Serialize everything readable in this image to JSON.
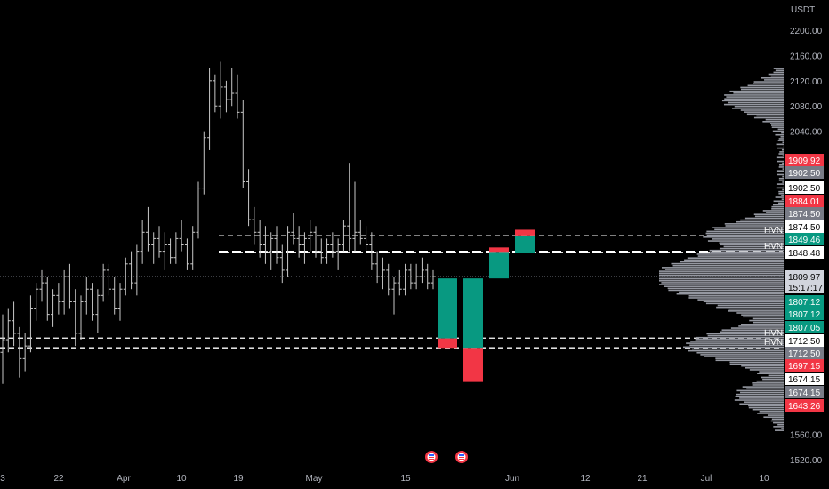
{
  "chart_data": {
    "type": "ohlc",
    "currency_label": "USDT",
    "y_axis": {
      "range": [
        1505,
        2215
      ],
      "ticks": [
        2200,
        2160,
        2120,
        2080,
        2040,
        1560,
        1520
      ],
      "tick_labels": [
        "2200.00",
        "2160.00",
        "2120.00",
        "2080.00",
        "2040.00",
        "1560.00",
        "1520.00"
      ]
    },
    "x_axis": {
      "tick_labels": [
        "3",
        "22",
        "Apr",
        "10",
        "19",
        "May",
        "15",
        "Jun",
        "12",
        "21",
        "Jul",
        "10"
      ]
    },
    "last_price": {
      "value": 1809.97,
      "countdown": "15:17:17"
    },
    "horizontal_levels": [
      {
        "value": 1874.5,
        "style": "dashed",
        "label": "HVN"
      },
      {
        "value": 1849.46,
        "style": "dashed-bold",
        "label": "HVN"
      },
      {
        "value": 1848.48,
        "style": "dotted"
      },
      {
        "value": 1712.5,
        "style": "dashed",
        "label": "HVN"
      },
      {
        "value": 1697.15,
        "style": "dashed",
        "label": "HVN"
      }
    ],
    "price_tags": [
      {
        "text": "1909.92",
        "bg": "#f23645",
        "fg": "#ffffff"
      },
      {
        "text": "1902.50",
        "bg": "#787b86",
        "fg": "#ffffff"
      },
      {
        "text": "1902.50",
        "bg": "#ffffff",
        "fg": "#000000"
      },
      {
        "text": "1884.01",
        "bg": "#f23645",
        "fg": "#ffffff"
      },
      {
        "text": "1874.50",
        "bg": "#787b86",
        "fg": "#ffffff"
      },
      {
        "text": "1874.50",
        "bg": "#ffffff",
        "fg": "#000000"
      },
      {
        "text": "1849.46",
        "bg": "#089981",
        "fg": "#ffffff"
      },
      {
        "text": "1848.48",
        "bg": "#ffffff",
        "fg": "#000000"
      },
      {
        "text": "1809.97",
        "bg": "#d1d4dc",
        "fg": "#000000"
      },
      {
        "text": "1807.12",
        "bg": "#089981",
        "fg": "#ffffff"
      },
      {
        "text": "1807.12",
        "bg": "#089981",
        "fg": "#ffffff"
      },
      {
        "text": "1807.05",
        "bg": "#089981",
        "fg": "#ffffff"
      },
      {
        "text": "1712.50",
        "bg": "#ffffff",
        "fg": "#000000"
      },
      {
        "text": "1712.50",
        "bg": "#787b86",
        "fg": "#ffffff"
      },
      {
        "text": "1697.15",
        "bg": "#f23645",
        "fg": "#ffffff"
      },
      {
        "text": "1674.15",
        "bg": "#ffffff",
        "fg": "#000000"
      },
      {
        "text": "1674.15",
        "bg": "#787b86",
        "fg": "#ffffff"
      },
      {
        "text": "1643.26",
        "bg": "#f23645",
        "fg": "#ffffff"
      }
    ],
    "hvn_label": "HVN",
    "weekly_boxes": [
      {
        "open": 1807,
        "close": 1712,
        "red_to": 1697
      },
      {
        "open": 1807,
        "close": 1697,
        "red_to": 1643
      },
      {
        "open": 1807,
        "close": 1849,
        "red_to": 1856
      },
      {
        "open": 1848,
        "close": 1875,
        "red_to": 1884
      }
    ],
    "ohlc_series": [
      [
        1690,
        1750,
        1640,
        1710
      ],
      [
        1710,
        1760,
        1690,
        1740
      ],
      [
        1740,
        1770,
        1700,
        1720
      ],
      [
        1720,
        1730,
        1650,
        1680
      ],
      [
        1680,
        1720,
        1660,
        1700
      ],
      [
        1700,
        1780,
        1690,
        1760
      ],
      [
        1760,
        1800,
        1740,
        1790
      ],
      [
        1790,
        1820,
        1770,
        1800
      ],
      [
        1800,
        1810,
        1740,
        1750
      ],
      [
        1750,
        1790,
        1730,
        1780
      ],
      [
        1780,
        1800,
        1750,
        1770
      ],
      [
        1770,
        1820,
        1750,
        1810
      ],
      [
        1810,
        1830,
        1760,
        1770
      ],
      [
        1770,
        1790,
        1700,
        1720
      ],
      [
        1720,
        1780,
        1710,
        1770
      ],
      [
        1770,
        1810,
        1750,
        1790
      ],
      [
        1790,
        1800,
        1740,
        1750
      ],
      [
        1750,
        1790,
        1720,
        1780
      ],
      [
        1780,
        1830,
        1770,
        1820
      ],
      [
        1820,
        1830,
        1780,
        1790
      ],
      [
        1790,
        1810,
        1750,
        1760
      ],
      [
        1760,
        1800,
        1740,
        1790
      ],
      [
        1790,
        1840,
        1780,
        1830
      ],
      [
        1830,
        1850,
        1790,
        1800
      ],
      [
        1800,
        1860,
        1780,
        1850
      ],
      [
        1850,
        1900,
        1830,
        1880
      ],
      [
        1880,
        1920,
        1850,
        1860
      ],
      [
        1860,
        1880,
        1830,
        1870
      ],
      [
        1870,
        1890,
        1840,
        1850
      ],
      [
        1850,
        1880,
        1820,
        1860
      ],
      [
        1860,
        1870,
        1830,
        1840
      ],
      [
        1840,
        1880,
        1830,
        1870
      ],
      [
        1870,
        1900,
        1850,
        1860
      ],
      [
        1860,
        1870,
        1820,
        1830
      ],
      [
        1830,
        1890,
        1820,
        1880
      ],
      [
        1880,
        1960,
        1870,
        1950
      ],
      [
        1950,
        2040,
        1940,
        2030
      ],
      [
        2030,
        2140,
        2010,
        2120
      ],
      [
        2120,
        2130,
        2070,
        2080
      ],
      [
        2080,
        2150,
        2060,
        2110
      ],
      [
        2110,
        2120,
        2070,
        2090
      ],
      [
        2090,
        2140,
        2080,
        2100
      ],
      [
        2100,
        2130,
        2060,
        2070
      ],
      [
        2070,
        2090,
        1950,
        1960
      ],
      [
        1960,
        1980,
        1890,
        1900
      ],
      [
        1900,
        1920,
        1860,
        1880
      ],
      [
        1880,
        1900,
        1840,
        1860
      ],
      [
        1860,
        1890,
        1830,
        1850
      ],
      [
        1850,
        1880,
        1820,
        1870
      ],
      [
        1870,
        1890,
        1830,
        1840
      ],
      [
        1840,
        1860,
        1800,
        1820
      ],
      [
        1820,
        1890,
        1810,
        1880
      ],
      [
        1880,
        1910,
        1860,
        1870
      ],
      [
        1870,
        1890,
        1840,
        1860
      ],
      [
        1860,
        1880,
        1830,
        1870
      ],
      [
        1870,
        1900,
        1850,
        1880
      ],
      [
        1880,
        1890,
        1840,
        1850
      ],
      [
        1850,
        1870,
        1830,
        1840
      ],
      [
        1840,
        1870,
        1830,
        1860
      ],
      [
        1860,
        1880,
        1840,
        1850
      ],
      [
        1850,
        1870,
        1820,
        1860
      ],
      [
        1860,
        1900,
        1850,
        1890
      ],
      [
        1890,
        1990,
        1850,
        1870
      ],
      [
        1870,
        1960,
        1850,
        1880
      ],
      [
        1880,
        1900,
        1860,
        1870
      ],
      [
        1870,
        1890,
        1850,
        1860
      ],
      [
        1860,
        1880,
        1820,
        1830
      ],
      [
        1830,
        1850,
        1800,
        1810
      ],
      [
        1810,
        1840,
        1790,
        1820
      ],
      [
        1820,
        1830,
        1780,
        1790
      ],
      [
        1790,
        1810,
        1750,
        1800
      ],
      [
        1800,
        1820,
        1780,
        1790
      ],
      [
        1790,
        1830,
        1780,
        1820
      ],
      [
        1820,
        1830,
        1790,
        1800
      ],
      [
        1800,
        1830,
        1790,
        1810
      ],
      [
        1810,
        1840,
        1800,
        1820
      ],
      [
        1820,
        1830,
        1790,
        1800
      ],
      [
        1800,
        1820,
        1790,
        1810
      ]
    ]
  },
  "events": [
    {
      "name": "us-flag-event-icon"
    },
    {
      "name": "us-flag-event-icon"
    }
  ]
}
